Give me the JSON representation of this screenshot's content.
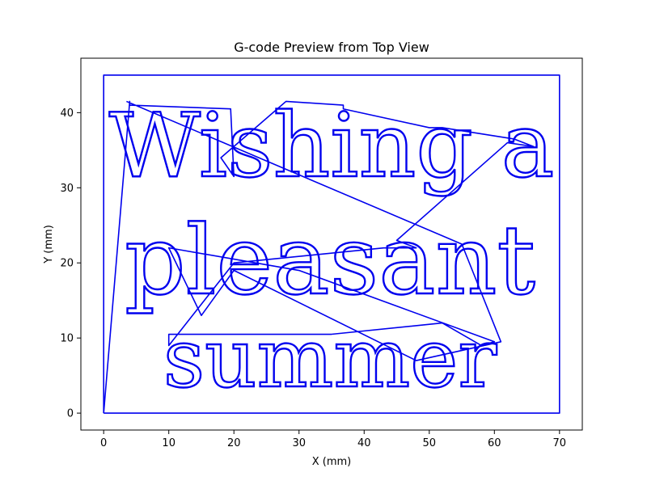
{
  "chart_data": {
    "type": "line",
    "title": "G-code Preview from Top View",
    "xlabel": "X (mm)",
    "ylabel": "Y (mm)",
    "xlim": [
      -3.5,
      73.5
    ],
    "ylim": [
      -2.25,
      47.25
    ],
    "xticks": [
      0,
      10,
      20,
      30,
      40,
      50,
      60,
      70
    ],
    "yticks": [
      0,
      10,
      20,
      30,
      40
    ],
    "grid": false,
    "color": "#0000ee",
    "engraved_text": [
      "Wishing a",
      "pleasant",
      "summer"
    ],
    "series": [
      {
        "x": [
          0,
          70,
          70,
          0,
          0
        ],
        "y": [
          0,
          0,
          45,
          45,
          0
        ]
      },
      {
        "x": [
          3.5,
          55,
          61,
          48,
          20,
          15,
          10,
          30,
          60,
          58,
          52,
          35,
          10,
          10,
          20,
          43,
          48,
          45,
          62,
          66,
          63,
          52,
          50,
          36.8,
          36.8,
          28,
          18,
          20,
          19.5,
          4,
          4,
          0
        ],
        "y": [
          41.5,
          22.5,
          9.5,
          7,
          19,
          13,
          22,
          19,
          9.5,
          9,
          12,
          10.5,
          10.5,
          9,
          20,
          22,
          22,
          23,
          36,
          35.5,
          36.5,
          38,
          38,
          40.5,
          41,
          41.5,
          34,
          31.5,
          40.5,
          41,
          41.5,
          0
        ]
      }
    ]
  }
}
